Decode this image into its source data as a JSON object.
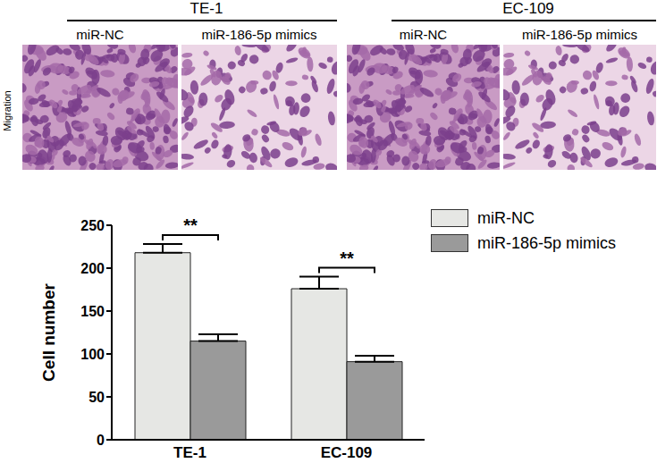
{
  "image_panels": {
    "row_label": "Migration",
    "groups": [
      {
        "title": "TE-1",
        "panels": [
          "miR-NC",
          "miR-186-5p mimics"
        ]
      },
      {
        "title": "EC-109",
        "panels": [
          "miR-NC",
          "miR-186-5p mimics"
        ]
      }
    ]
  },
  "chart_data": {
    "type": "bar",
    "categories": [
      "TE-1",
      "EC-109"
    ],
    "series": [
      {
        "name": "miR-NC",
        "color": "#e6e7e4",
        "values": [
          218,
          176
        ],
        "errors": [
          10,
          14
        ]
      },
      {
        "name": "miR-186-5p mimics",
        "color": "#9a9a9a",
        "values": [
          115,
          91
        ],
        "errors": [
          8,
          7
        ]
      }
    ],
    "y_label": "Cell number",
    "ylim": [
      0,
      250
    ],
    "yticks": [
      0,
      50,
      100,
      150,
      200,
      250
    ],
    "annotations": [
      {
        "category": "TE-1",
        "text": "**"
      },
      {
        "category": "EC-109",
        "text": "**"
      }
    ],
    "legend": "upper right"
  }
}
